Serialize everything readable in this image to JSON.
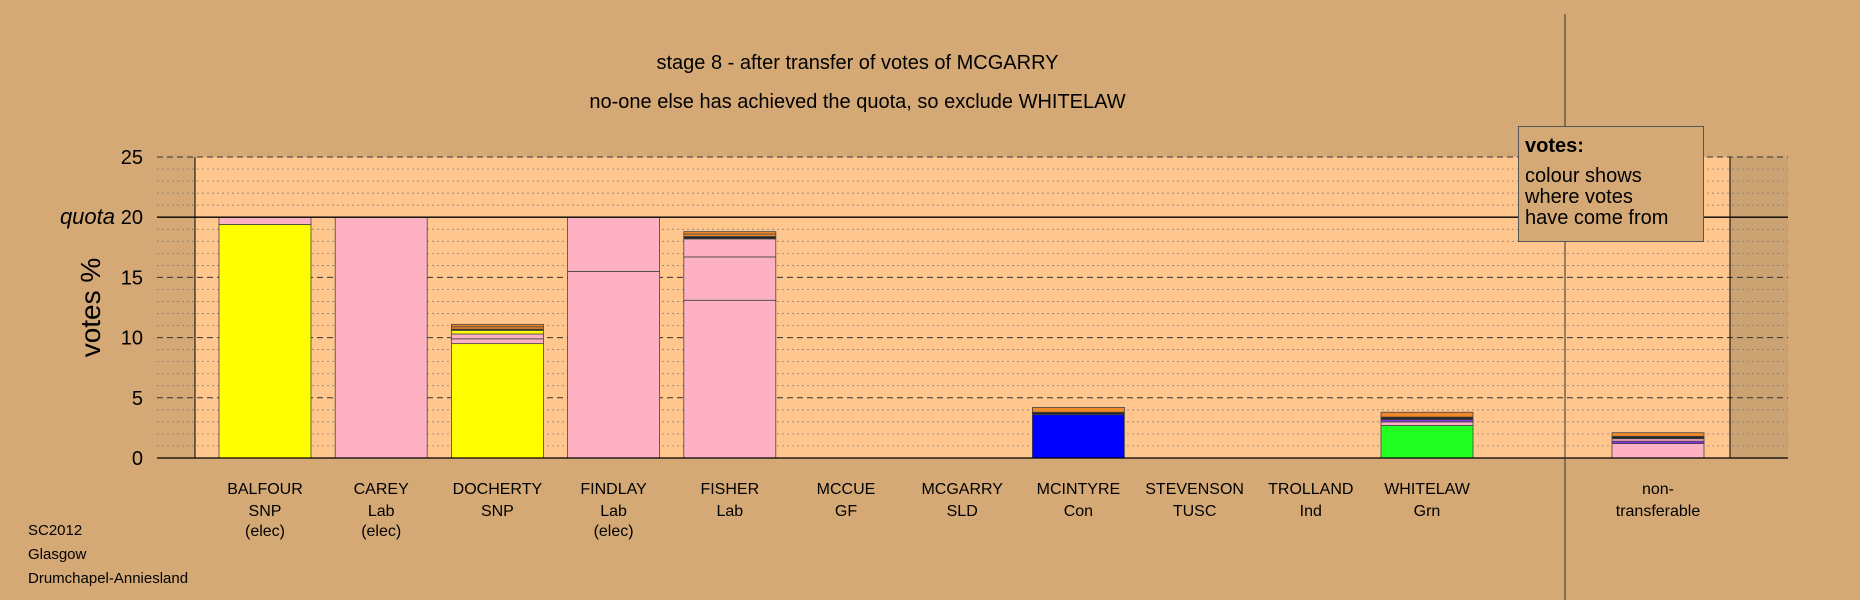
{
  "titles": {
    "line1": "stage 8 - after transfer of votes of MCGARRY",
    "line2": "no-one else has achieved the quota, so exclude WHITELAW"
  },
  "legend": {
    "title": "votes:",
    "lines": [
      "colour shows",
      "where votes",
      "have come from"
    ]
  },
  "footer": [
    "SC2012",
    "Glasgow",
    "Drumchapel-Anniesland"
  ],
  "colors": {
    "background": "#d4a976",
    "plot_area": "#ffc78d",
    "SNP": "#ffff00",
    "Lab": "#ffb1c4",
    "Con": "#0000ff",
    "Grn": "#22ff22",
    "orange": "#f0882a",
    "purple": "#8a2be2",
    "dark": "#222222",
    "nontransfer_shade": "#c8a070"
  },
  "chart_data": {
    "type": "bar",
    "stacked": true,
    "ylabel": "votes %",
    "ylim": [
      0,
      25
    ],
    "yticks": [
      0,
      5,
      10,
      15,
      20,
      25
    ],
    "quota": 20,
    "quota_label": "quota",
    "grid": true,
    "candidates": [
      {
        "name": "BALFOUR",
        "party": "SNP",
        "note": "(elec)",
        "segments": [
          {
            "source": "SNP",
            "value": 19.4,
            "color": "#ffff00"
          },
          {
            "source": "Lab",
            "value": 0.6,
            "color": "#ffb1c4"
          }
        ]
      },
      {
        "name": "CAREY",
        "party": "Lab",
        "note": "(elec)",
        "segments": [
          {
            "source": "Lab",
            "value": 20.0,
            "color": "#ffb1c4"
          }
        ]
      },
      {
        "name": "DOCHERTY",
        "party": "SNP",
        "note": "",
        "segments": [
          {
            "source": "SNP",
            "value": 9.5,
            "color": "#ffff00"
          },
          {
            "source": "Lab",
            "value": 0.4,
            "color": "#ffb1c4"
          },
          {
            "source": "Lab",
            "value": 0.4,
            "color": "#ffb1c4"
          },
          {
            "source": "SNP",
            "value": 0.3,
            "color": "#ffff00"
          },
          {
            "source": "other",
            "value": 0.1,
            "color": "#222222"
          },
          {
            "source": "other",
            "value": 0.2,
            "color": "#f0882a"
          },
          {
            "source": "other",
            "value": 0.2,
            "color": "#f0882a"
          }
        ]
      },
      {
        "name": "FINDLAY",
        "party": "Lab",
        "note": "(elec)",
        "segments": [
          {
            "source": "Lab",
            "value": 15.5,
            "color": "#ffb1c4"
          },
          {
            "source": "Lab",
            "value": 4.5,
            "color": "#ffb1c4"
          }
        ]
      },
      {
        "name": "FISHER",
        "party": "Lab",
        "note": "",
        "segments": [
          {
            "source": "Lab",
            "value": 13.1,
            "color": "#ffb1c4"
          },
          {
            "source": "Lab",
            "value": 3.6,
            "color": "#ffb1c4"
          },
          {
            "source": "Lab",
            "value": 1.5,
            "color": "#ffb1c4"
          },
          {
            "source": "other",
            "value": 0.2,
            "color": "#222222"
          },
          {
            "source": "other",
            "value": 0.2,
            "color": "#f0882a"
          },
          {
            "source": "other",
            "value": 0.2,
            "color": "#f0882a"
          }
        ]
      },
      {
        "name": "MCCUE",
        "party": "GF",
        "note": "",
        "segments": []
      },
      {
        "name": "MCGARRY",
        "party": "SLD",
        "note": "",
        "segments": []
      },
      {
        "name": "MCINTYRE",
        "party": "Con",
        "note": "",
        "segments": [
          {
            "source": "Con",
            "value": 3.6,
            "color": "#0000ff"
          },
          {
            "source": "other",
            "value": 0.2,
            "color": "#222222"
          },
          {
            "source": "other",
            "value": 0.4,
            "color": "#f0882a"
          }
        ]
      },
      {
        "name": "STEVENSON",
        "party": "TUSC",
        "note": "",
        "segments": []
      },
      {
        "name": "TROLLAND",
        "party": "Ind",
        "note": "",
        "segments": []
      },
      {
        "name": "WHITELAW",
        "party": "Grn",
        "note": "",
        "segments": [
          {
            "source": "Grn",
            "value": 2.7,
            "color": "#22ff22"
          },
          {
            "source": "Lab",
            "value": 0.3,
            "color": "#ffb1c4"
          },
          {
            "source": "other",
            "value": 0.2,
            "color": "#8a2be2"
          },
          {
            "source": "other",
            "value": 0.2,
            "color": "#222222"
          },
          {
            "source": "other",
            "value": 0.4,
            "color": "#f0882a"
          }
        ]
      }
    ],
    "nontransferable": {
      "name": "non-",
      "party": "transferable",
      "segments": [
        {
          "source": "Lab",
          "value": 1.2,
          "color": "#ffb1c4"
        },
        {
          "source": "other",
          "value": 0.2,
          "color": "#8a2be2"
        },
        {
          "source": "other",
          "value": 0.2,
          "color": "#ffb1c4"
        },
        {
          "source": "other",
          "value": 0.2,
          "color": "#222222"
        },
        {
          "source": "other",
          "value": 0.3,
          "color": "#f0882a"
        }
      ]
    }
  }
}
